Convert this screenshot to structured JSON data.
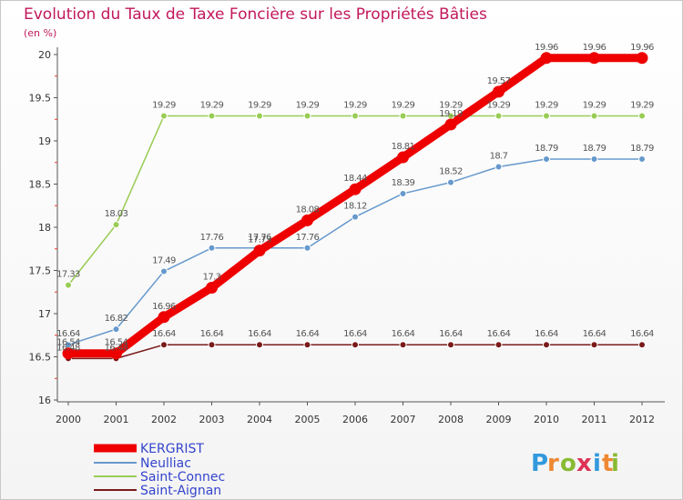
{
  "chart_data": {
    "type": "line",
    "title": "Evolution du Taux de Taxe Foncière sur les Propriétés Bâties",
    "unit_label": "(en %)",
    "x": [
      "2000",
      "2001",
      "2002",
      "2003",
      "2004",
      "2005",
      "2006",
      "2007",
      "2008",
      "2009",
      "2010",
      "2011",
      "2012"
    ],
    "ylim": [
      16,
      20
    ],
    "yticks": [
      "16",
      "16.5",
      "17",
      "17.5",
      "18",
      "18.5",
      "19",
      "19.5",
      "20"
    ],
    "series": [
      {
        "name": "Saint-Aignan",
        "color": "#7a1a1a",
        "values": [
          16.48,
          16.48,
          16.64,
          16.64,
          16.64,
          16.64,
          16.64,
          16.64,
          16.64,
          16.64,
          16.64,
          16.64,
          16.64
        ],
        "labels": [
          "16.48",
          "16.48",
          "16.64",
          "16.64",
          "16.64",
          "16.64",
          "16.64",
          "16.64",
          "16.64",
          "16.64",
          "16.64",
          "16.64",
          "16.64"
        ]
      },
      {
        "name": "Saint-Connec",
        "color": "#99cc55",
        "values": [
          17.33,
          18.03,
          19.29,
          19.29,
          19.29,
          19.29,
          19.29,
          19.29,
          19.29,
          19.29,
          19.29,
          19.29,
          19.29
        ],
        "labels": [
          "17.33",
          "18.03",
          "19.29",
          "19.29",
          "19.29",
          "19.29",
          "19.29",
          "19.29",
          "19.29",
          "19.29",
          "19.29",
          "19.29",
          "19.29"
        ]
      },
      {
        "name": "Neulliac",
        "color": "#6699cc",
        "values": [
          16.64,
          16.82,
          17.49,
          17.76,
          17.76,
          17.76,
          18.12,
          18.39,
          18.52,
          18.7,
          18.79,
          18.79,
          18.79
        ],
        "labels": [
          "16.64",
          "16.82",
          "17.49",
          "17.76",
          "17.76",
          "17.76",
          "18.12",
          "18.39",
          "18.52",
          "18.7",
          "18.79",
          "18.79",
          "18.79"
        ]
      },
      {
        "name": "KERGRIST",
        "color": "#ee0000",
        "values": [
          16.54,
          16.54,
          16.96,
          17.3,
          17.73,
          18.08,
          18.44,
          18.81,
          19.19,
          19.57,
          19.96,
          19.96,
          19.96
        ],
        "labels": [
          "16.54",
          "16.54",
          "16.96",
          "17.3",
          "17.73",
          "18.08",
          "18.44",
          "18.81",
          "19.19",
          "19.57",
          "19.96",
          "19.96",
          "19.96"
        ]
      }
    ],
    "legend": [
      "KERGRIST",
      "Neulliac",
      "Saint-Connec",
      "Saint-Aignan"
    ],
    "legend_position": "bottom-left"
  },
  "logo": {
    "letters": [
      "P",
      "r",
      "o",
      "x",
      "i",
      "t",
      "i"
    ],
    "colors": [
      "#3399dd",
      "#ee8833",
      "#88bb33",
      "#dd3355",
      "#3399dd",
      "#ee8833",
      "#88bb33"
    ]
  }
}
